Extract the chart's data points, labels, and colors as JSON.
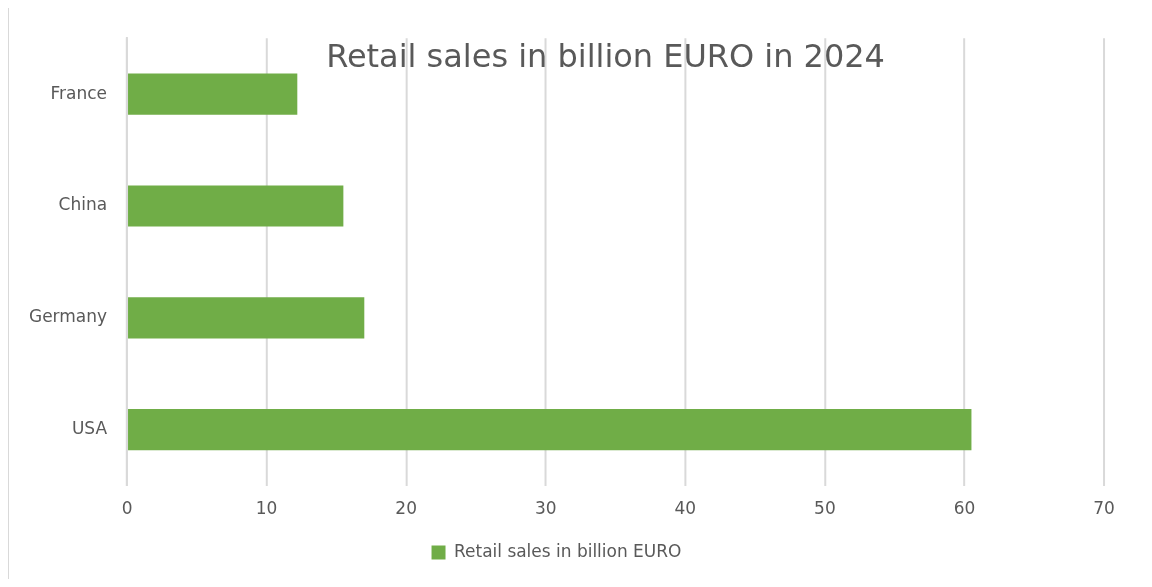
{
  "chart_data": {
    "type": "bar",
    "orientation": "horizontal",
    "title": "Retail sales in billion EURO in 2024",
    "categories": [
      "France",
      "China",
      "Germany",
      "USA"
    ],
    "series": [
      {
        "name": "Retail sales in billion EURO",
        "color": "#70ad47",
        "values": [
          12.2,
          15.5,
          17.0,
          60.5
        ]
      }
    ],
    "xlim": [
      0,
      70
    ],
    "xticks": [
      0,
      10,
      20,
      30,
      40,
      50,
      60,
      70
    ],
    "grid": "x",
    "legend": "bottom"
  }
}
